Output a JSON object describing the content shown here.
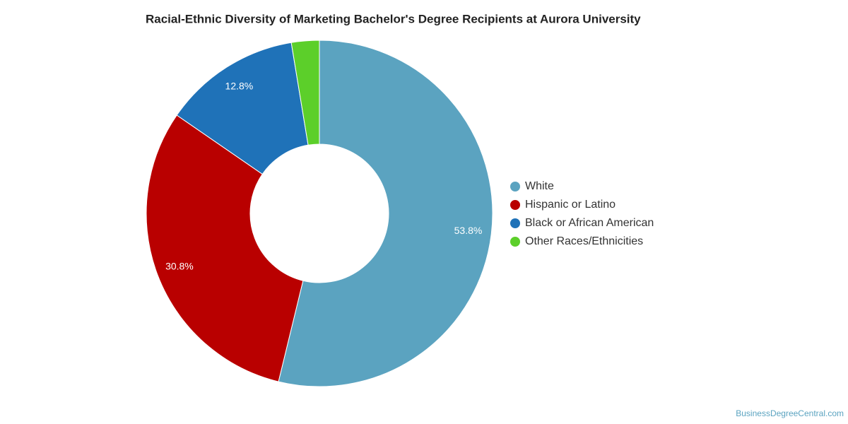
{
  "chart_data": {
    "type": "donut",
    "title": "Racial-Ethnic Diversity of Marketing Bachelor's Degree Recipients at Aurora University",
    "categories": [
      "White",
      "Hispanic or Latino",
      "Black or African American",
      "Other Races/Ethnicities"
    ],
    "values": [
      53.8,
      30.8,
      12.8,
      2.6
    ],
    "value_labels": [
      "53.8%",
      "30.8%",
      "12.8%",
      null
    ],
    "colors": [
      "#5ba3c0",
      "#b90000",
      "#1f72b8",
      "#5ccf2a"
    ],
    "legend": "right",
    "watermark": "BusinessDegreeCentral.com"
  }
}
